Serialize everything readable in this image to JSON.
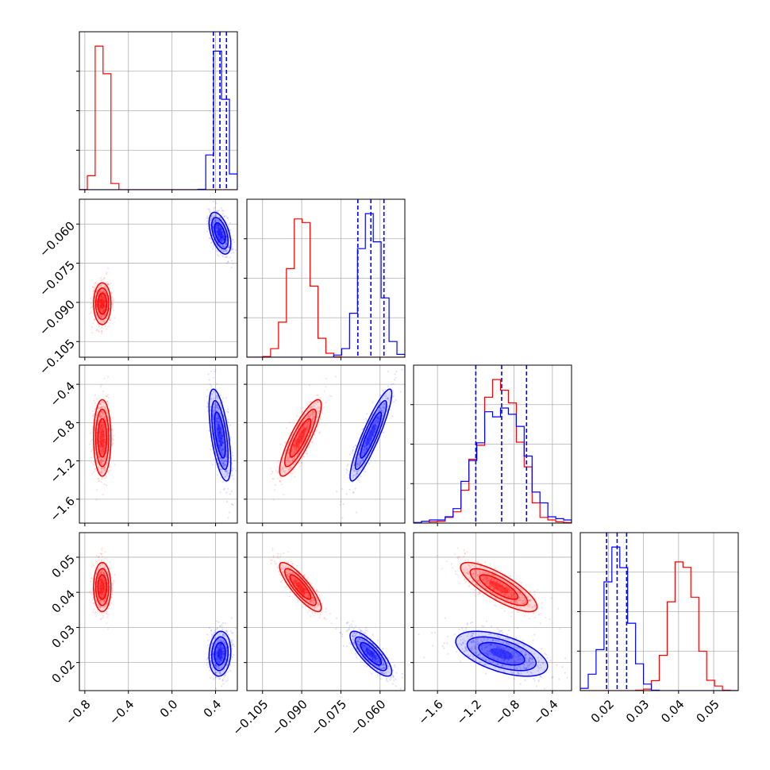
{
  "colors": {
    "series_a": "#ff0000",
    "series_b": "#0000ff",
    "grid": "#b0b0b0"
  },
  "chart_data": {
    "type": "corner",
    "grid": true,
    "parameters": [
      {
        "range": [
          -0.85,
          0.6
        ],
        "ticks": [
          -0.8,
          -0.4,
          0.0,
          0.4
        ],
        "tick_labels": [
          "−0.8",
          "−0.4",
          "0.0",
          "0.4"
        ]
      },
      {
        "range": [
          -0.111,
          -0.0505
        ],
        "ticks": [
          -0.105,
          -0.09,
          -0.075,
          -0.06
        ],
        "tick_labels": [
          "−0.105",
          "−0.090",
          "−0.075",
          "−0.060"
        ]
      },
      {
        "range": [
          -1.85,
          -0.2
        ],
        "ticks": [
          -1.6,
          -1.2,
          -0.8,
          -0.4
        ],
        "tick_labels": [
          "−1.6",
          "−1.2",
          "−0.8",
          "−0.4"
        ]
      },
      {
        "range": [
          0.012,
          0.057
        ],
        "ticks": [
          0.02,
          0.03,
          0.04,
          0.05
        ],
        "tick_labels": [
          "0.02",
          "0.03",
          "0.04",
          "0.05"
        ]
      }
    ],
    "series": [
      {
        "color": "#ff0000",
        "mean": [
          -0.64,
          -0.0905,
          -0.96,
          0.0415
        ],
        "std": [
          0.04,
          0.004,
          0.2,
          0.0035
        ],
        "corr": {
          "1-0": 0.0,
          "2-0": 0.0,
          "3-0": 0.0,
          "2-1": 0.85,
          "3-1": -0.85,
          "3-2": -0.8
        }
      },
      {
        "color": "#0000ff",
        "mean": [
          0.44,
          -0.0635,
          -0.93,
          0.0225
        ],
        "std": [
          0.05,
          0.004,
          0.24,
          0.0032
        ],
        "corr": {
          "1-0": -0.5,
          "2-0": -0.6,
          "3-0": 0.1,
          "2-1": 0.9,
          "3-1": -0.8,
          "3-2": -0.55
        }
      }
    ],
    "quantile_lines": {
      "color": "#0000ff",
      "values": [
        [
          0.38,
          0.44,
          0.5
        ],
        [
          -0.0685,
          -0.0635,
          -0.0585
        ],
        [
          -1.2,
          -0.93,
          -0.67
        ],
        [
          0.0195,
          0.0225,
          0.0252
        ]
      ]
    }
  }
}
